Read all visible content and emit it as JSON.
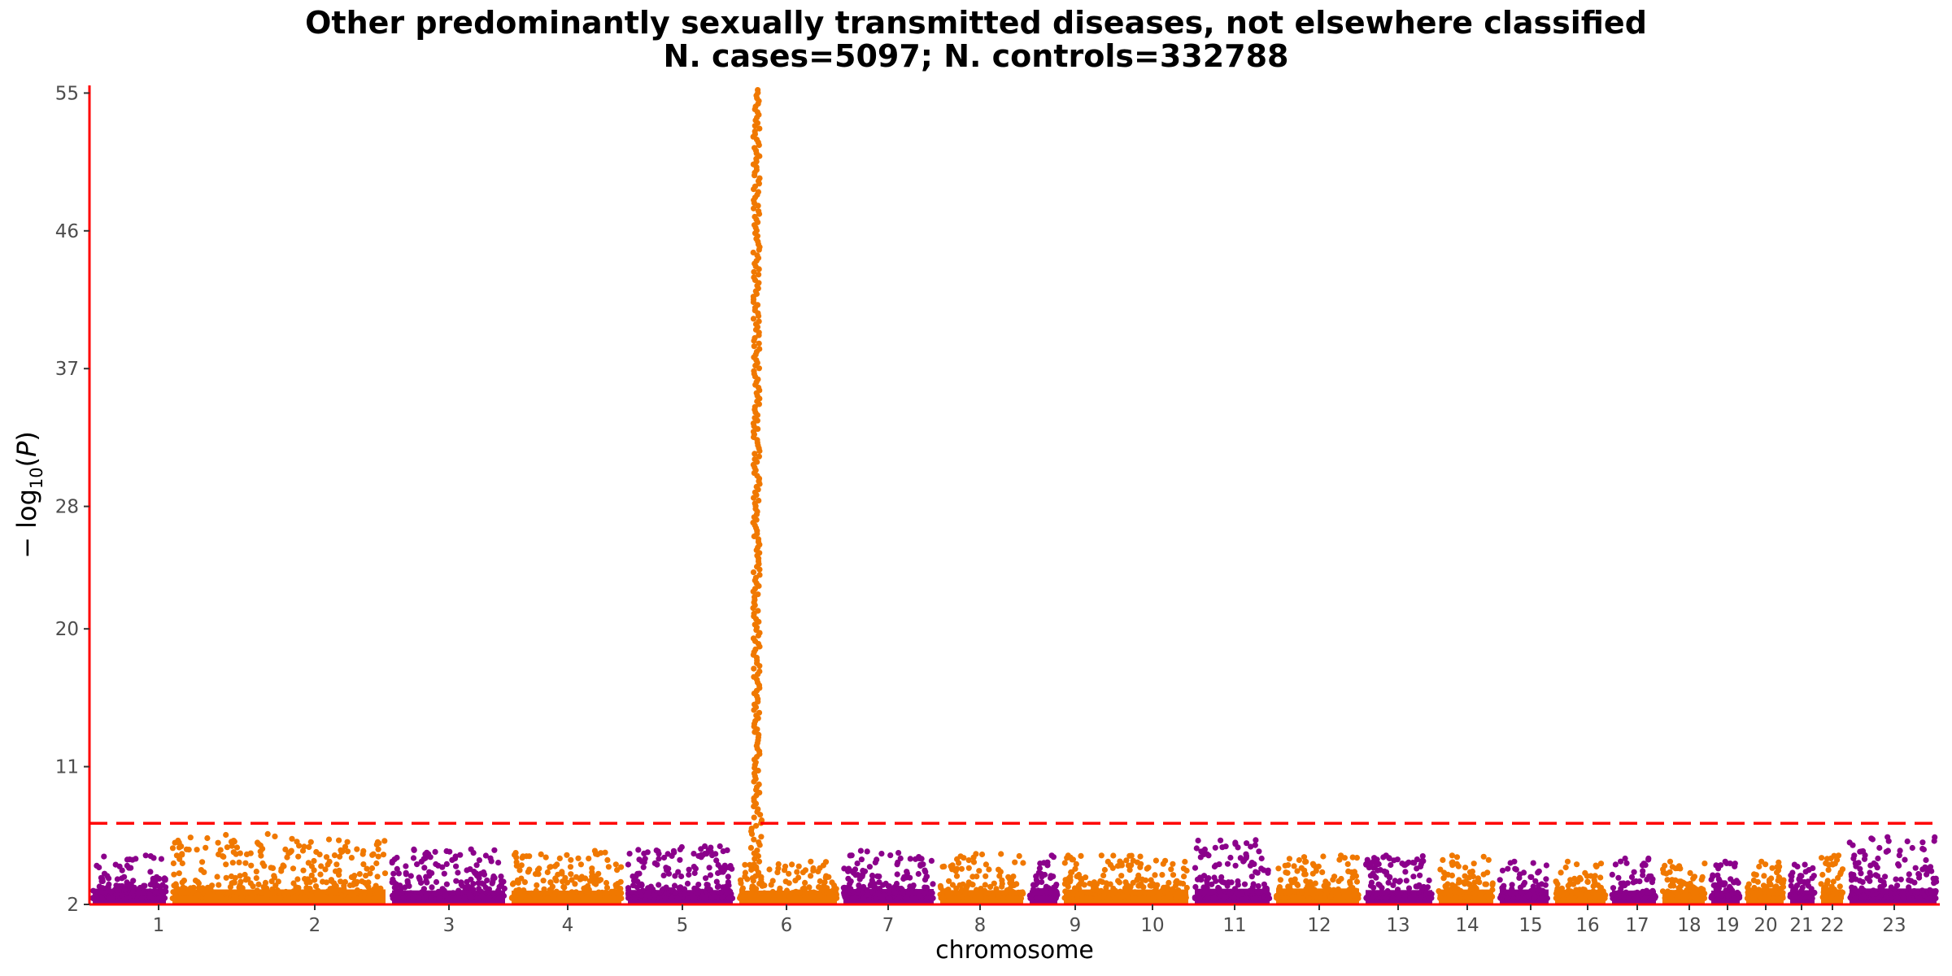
{
  "chart_data": {
    "type": "scatter",
    "title": "Other predominantly sexually transmitted diseases, not elsewhere classified",
    "subtitle": "N. cases=5097; N. controls=332788",
    "xlabel": "chromosome",
    "ylabel": "− log10(P)",
    "ylim": [
      2,
      55.5
    ],
    "yticks": [
      2,
      11,
      20,
      28,
      37,
      46,
      55
    ],
    "significance_threshold": 7.3,
    "colors": {
      "odd_chromosomes": "#8b008b",
      "even_chromosomes": "#f07800",
      "threshold_line": "#ff0000",
      "axes": "#ff0000"
    },
    "chromosomes": [
      {
        "label": "1",
        "color": "purple",
        "background_max": 5.2
      },
      {
        "label": "2",
        "color": "orange",
        "background_max": 6.6
      },
      {
        "label": "3",
        "color": "purple",
        "background_max": 5.6
      },
      {
        "label": "4",
        "color": "orange",
        "background_max": 5.5
      },
      {
        "label": "5",
        "color": "purple",
        "background_max": 5.8
      },
      {
        "label": "6",
        "color": "orange",
        "background_max": 4.8,
        "peak_max": 55.2
      },
      {
        "label": "7",
        "color": "purple",
        "background_max": 5.5
      },
      {
        "label": "8",
        "color": "orange",
        "background_max": 5.3
      },
      {
        "label": "9",
        "color": "purple",
        "background_max": 5.2
      },
      {
        "label": "10",
        "color": "orange",
        "background_max": 5.2
      },
      {
        "label": "11",
        "color": "purple",
        "background_max": 6.2
      },
      {
        "label": "12",
        "color": "orange",
        "background_max": 5.2
      },
      {
        "label": "13",
        "color": "purple",
        "background_max": 5.2
      },
      {
        "label": "14",
        "color": "orange",
        "background_max": 5.2
      },
      {
        "label": "15",
        "color": "purple",
        "background_max": 4.8
      },
      {
        "label": "16",
        "color": "orange",
        "background_max": 4.8
      },
      {
        "label": "17",
        "color": "purple",
        "background_max": 5.0
      },
      {
        "label": "18",
        "color": "orange",
        "background_max": 4.8
      },
      {
        "label": "19",
        "color": "purple",
        "background_max": 4.8
      },
      {
        "label": "20",
        "color": "orange",
        "background_max": 4.8
      },
      {
        "label": "21",
        "color": "purple",
        "background_max": 4.6
      },
      {
        "label": "22",
        "color": "orange",
        "background_max": 5.2
      },
      {
        "label": "23",
        "color": "purple",
        "background_max": 6.4
      }
    ]
  }
}
